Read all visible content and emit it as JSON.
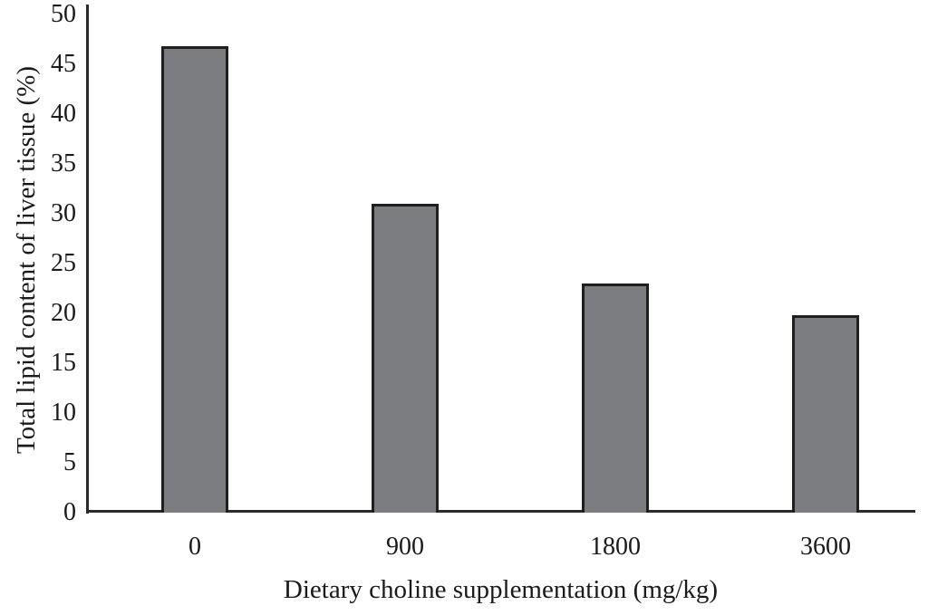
{
  "chart_data": {
    "type": "bar",
    "categories": [
      "0",
      "900",
      "1800",
      "3600"
    ],
    "values": [
      46.8,
      31,
      23,
      19.8
    ],
    "xlabel": "Dietary choline supplementation (mg/kg)",
    "ylabel": "Total lipid content of liver tissue (%)",
    "ylim": [
      0,
      50
    ],
    "yticks": [
      0,
      5,
      10,
      15,
      20,
      25,
      30,
      35,
      40,
      45,
      50
    ],
    "grid": false,
    "legend": "none",
    "colors": {
      "bar_fill": "#7B7D80",
      "bar_border": "#1F1F1F",
      "axis": "#2B2B2B",
      "text": "#1A1A1A",
      "background": "#FFFFFF"
    }
  }
}
